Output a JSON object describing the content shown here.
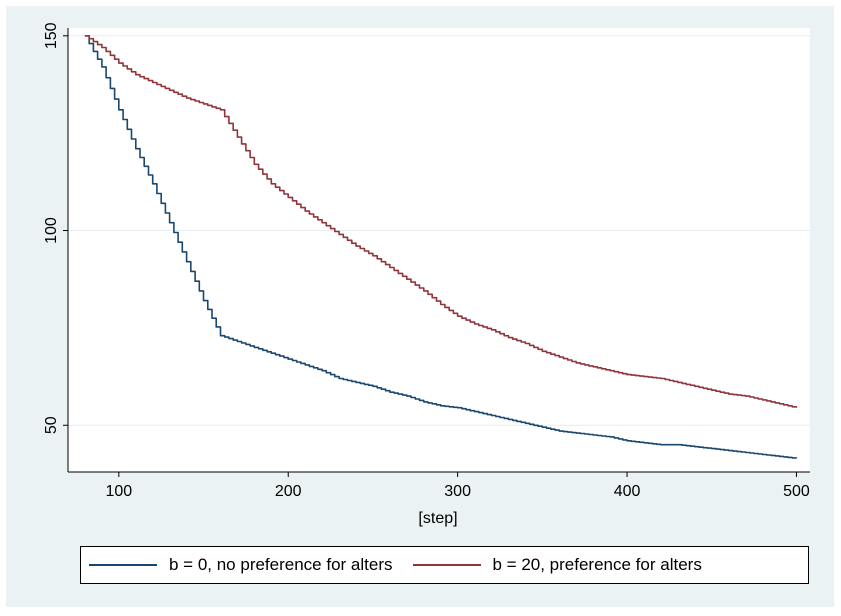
{
  "chart_data": {
    "type": "line",
    "title": "",
    "xlabel": "[step]",
    "ylabel": "",
    "xlim": [
      70,
      508
    ],
    "ylim": [
      38,
      152
    ],
    "xticks": [
      100,
      200,
      300,
      400,
      500
    ],
    "yticks": [
      50,
      100,
      150
    ],
    "grid": true,
    "legend_position": "bottom",
    "series": [
      {
        "name": "b = 0, no preference for alters",
        "color": "#1a476f",
        "x": [
          80,
          90,
          100,
          110,
          120,
          130,
          140,
          150,
          160,
          170,
          180,
          190,
          200,
          210,
          220,
          230,
          240,
          250,
          260,
          270,
          280,
          290,
          300,
          310,
          320,
          330,
          340,
          350,
          360,
          370,
          380,
          390,
          400,
          410,
          420,
          430,
          440,
          450,
          460,
          470,
          480,
          490,
          500
        ],
        "y": [
          150,
          142,
          131,
          121,
          112,
          102,
          92,
          82,
          73,
          71.5,
          70,
          68.5,
          67,
          65.5,
          64,
          62,
          61,
          60,
          58.5,
          57.5,
          56,
          55,
          54.5,
          53.5,
          52.5,
          51.5,
          50.5,
          49.5,
          48.5,
          48,
          47.5,
          47,
          46,
          45.5,
          45,
          45,
          44.5,
          44,
          43.5,
          43,
          42.5,
          42,
          41.5
        ]
      },
      {
        "name": "b = 20, preference for alters",
        "color": "#90353b",
        "x": [
          80,
          90,
          100,
          110,
          120,
          130,
          140,
          150,
          160,
          170,
          180,
          190,
          200,
          210,
          220,
          230,
          240,
          250,
          260,
          270,
          280,
          290,
          300,
          310,
          320,
          330,
          340,
          350,
          360,
          370,
          380,
          390,
          400,
          410,
          420,
          430,
          440,
          450,
          460,
          470,
          480,
          490,
          500
        ],
        "y": [
          150,
          147,
          143,
          140,
          138,
          136,
          134,
          132.5,
          131,
          124,
          117,
          112,
          108.5,
          105,
          102,
          99,
          96,
          93.5,
          90.5,
          87.5,
          84.5,
          81,
          78,
          76,
          74.5,
          72.5,
          71,
          69,
          67.5,
          66,
          65,
          64,
          63,
          62.5,
          62,
          61,
          60,
          59,
          58,
          57.5,
          56.5,
          55.5,
          54.5
        ]
      }
    ]
  }
}
